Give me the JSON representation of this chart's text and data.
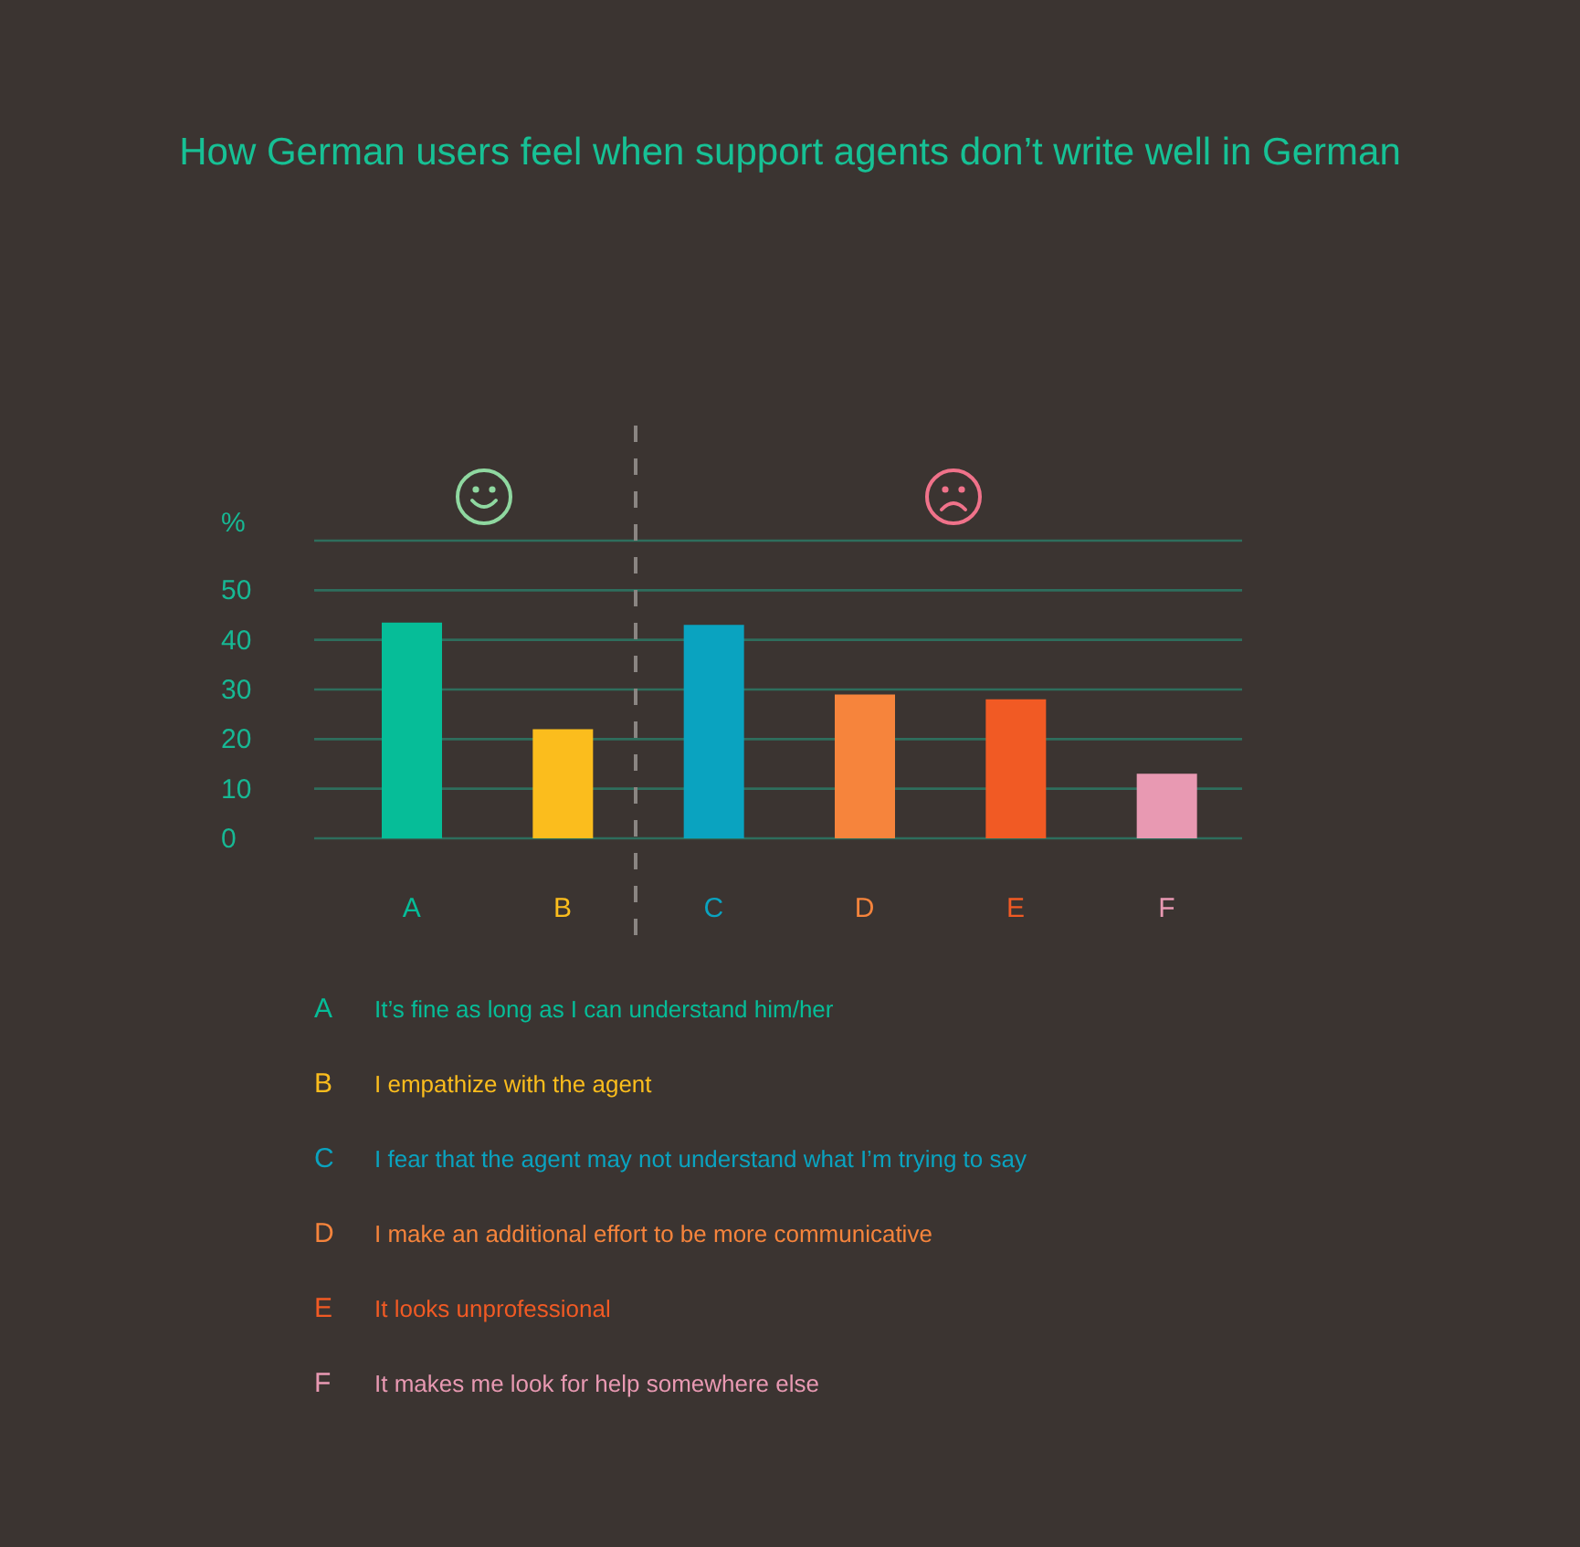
{
  "chart_data": {
    "type": "bar",
    "title": "How German users feel when support agents don’t write well in German",
    "ylabel": "%",
    "categories": [
      "A",
      "B",
      "C",
      "D",
      "E",
      "F"
    ],
    "values": [
      43.5,
      22,
      43,
      29,
      28,
      13
    ],
    "colors": [
      "#06bd98",
      "#fbbd1d",
      "#0aa3c0",
      "#f6843c",
      "#f15a24",
      "#e899b2"
    ],
    "ylim": [
      0,
      60
    ],
    "yticks": [
      0,
      10,
      20,
      30,
      40,
      50,
      {
        "value": 60,
        "label": null
      }
    ],
    "grid": "y",
    "annotations": [
      "It’s fine as long as I can understand him/her",
      "I empathize with the agent",
      "I fear that the agent may not understand what I’m trying to say",
      "I make an additional effort to be more communicative",
      "It looks unprofessional",
      "It makes me look for help somewhere else"
    ]
  }
}
